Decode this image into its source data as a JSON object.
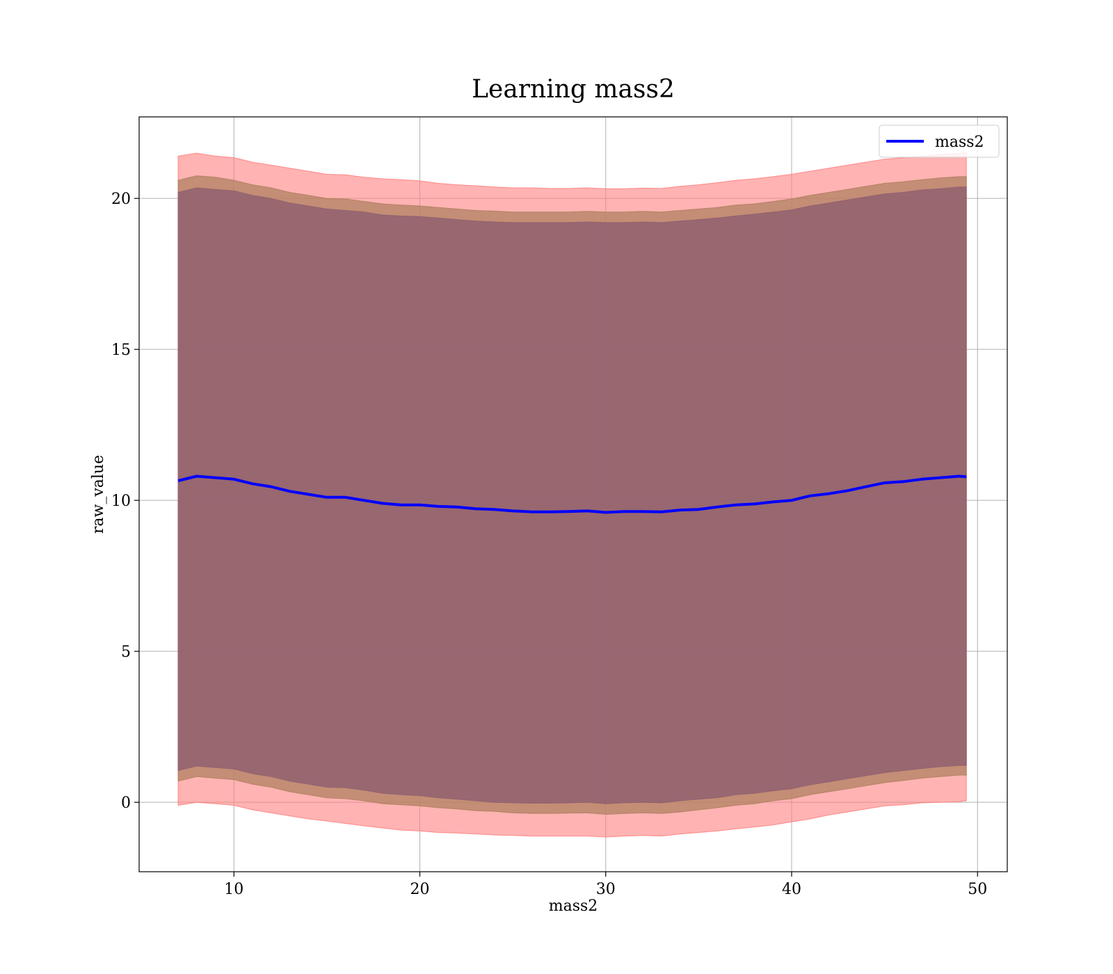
{
  "chart_data": {
    "type": "area",
    "title": "Learning mass2",
    "xlabel": "mass2",
    "ylabel": "raw_value",
    "xlim": [
      4.9,
      51.6
    ],
    "ylim": [
      -2.3,
      22.7
    ],
    "xticks": [
      10,
      20,
      30,
      40,
      50
    ],
    "yticks": [
      0,
      5,
      10,
      15,
      20
    ],
    "xtick_labels": [
      "10",
      "20",
      "30",
      "40",
      "50"
    ],
    "ytick_labels": [
      "0",
      "5",
      "10",
      "15",
      "20"
    ],
    "grid": true,
    "legend": {
      "position": "top-right",
      "entries": [
        "mass2"
      ]
    },
    "colors": {
      "line": "#0000ff",
      "outer_band": "#ff8080",
      "middle_band": "#b08060",
      "inner_band": "#906070",
      "grid": "#b0b0b0"
    },
    "x": [
      7.0,
      8.0,
      9.0,
      10.0,
      11.0,
      12.0,
      13.0,
      14.0,
      15.0,
      16.0,
      17.0,
      18.0,
      19.0,
      20.0,
      21.0,
      22.0,
      23.0,
      24.0,
      25.0,
      26.0,
      27.0,
      28.0,
      29.0,
      30.0,
      31.0,
      32.0,
      33.0,
      34.0,
      35.0,
      36.0,
      37.0,
      38.0,
      39.0,
      40.0,
      41.0,
      42.0,
      43.0,
      44.0,
      45.0,
      46.0,
      47.0,
      48.0,
      49.0,
      49.4
    ],
    "series": [
      {
        "name": "mass2",
        "values": [
          10.65,
          10.8,
          10.75,
          10.7,
          10.55,
          10.45,
          10.3,
          10.2,
          10.1,
          10.1,
          10.0,
          9.9,
          9.85,
          9.85,
          9.8,
          9.78,
          9.72,
          9.7,
          9.65,
          9.62,
          9.62,
          9.63,
          9.65,
          9.6,
          9.63,
          9.63,
          9.62,
          9.68,
          9.7,
          9.78,
          9.85,
          9.88,
          9.95,
          10.0,
          10.15,
          10.22,
          10.32,
          10.45,
          10.58,
          10.62,
          10.7,
          10.75,
          10.8,
          10.78
        ]
      }
    ],
    "bands": [
      {
        "upper": [
          21.4,
          21.5,
          21.4,
          21.35,
          21.2,
          21.1,
          21.0,
          20.9,
          20.8,
          20.78,
          20.7,
          20.65,
          20.62,
          20.58,
          20.5,
          20.45,
          20.42,
          20.38,
          20.35,
          20.35,
          20.33,
          20.33,
          20.35,
          20.32,
          20.32,
          20.34,
          20.33,
          20.4,
          20.45,
          20.52,
          20.6,
          20.65,
          20.72,
          20.8,
          20.9,
          21.0,
          21.1,
          21.2,
          21.3,
          21.35,
          21.4,
          21.45,
          21.5,
          21.5
        ],
        "lower": [
          -0.1,
          0.0,
          -0.05,
          -0.1,
          -0.25,
          -0.35,
          -0.45,
          -0.55,
          -0.62,
          -0.7,
          -0.78,
          -0.85,
          -0.92,
          -0.95,
          -1.0,
          -1.02,
          -1.05,
          -1.08,
          -1.1,
          -1.12,
          -1.12,
          -1.12,
          -1.12,
          -1.15,
          -1.12,
          -1.1,
          -1.12,
          -1.05,
          -1.0,
          -0.95,
          -0.88,
          -0.82,
          -0.75,
          -0.65,
          -0.55,
          -0.42,
          -0.32,
          -0.22,
          -0.12,
          -0.08,
          -0.02,
          0.0,
          0.02,
          0.05
        ]
      },
      {
        "upper": [
          20.6,
          20.75,
          20.7,
          20.6,
          20.45,
          20.35,
          20.2,
          20.1,
          20.0,
          19.98,
          19.9,
          19.82,
          19.78,
          19.75,
          19.7,
          19.65,
          19.6,
          19.58,
          19.55,
          19.55,
          19.55,
          19.55,
          19.57,
          19.55,
          19.55,
          19.57,
          19.55,
          19.6,
          19.65,
          19.7,
          19.78,
          19.82,
          19.9,
          19.98,
          20.1,
          20.2,
          20.3,
          20.4,
          20.5,
          20.55,
          20.62,
          20.68,
          20.72,
          20.72
        ],
        "lower": [
          0.7,
          0.85,
          0.8,
          0.75,
          0.6,
          0.5,
          0.35,
          0.25,
          0.15,
          0.12,
          0.05,
          -0.05,
          -0.08,
          -0.12,
          -0.18,
          -0.22,
          -0.28,
          -0.3,
          -0.35,
          -0.37,
          -0.37,
          -0.36,
          -0.35,
          -0.4,
          -0.37,
          -0.35,
          -0.37,
          -0.32,
          -0.25,
          -0.18,
          -0.1,
          -0.05,
          0.05,
          0.12,
          0.25,
          0.35,
          0.45,
          0.55,
          0.65,
          0.72,
          0.8,
          0.85,
          0.9,
          0.9
        ]
      },
      {
        "upper": [
          20.2,
          20.35,
          20.3,
          20.25,
          20.1,
          20.0,
          19.85,
          19.75,
          19.65,
          19.6,
          19.55,
          19.45,
          19.42,
          19.4,
          19.35,
          19.3,
          19.25,
          19.22,
          19.2,
          19.2,
          19.2,
          19.2,
          19.22,
          19.2,
          19.2,
          19.22,
          19.2,
          19.25,
          19.3,
          19.35,
          19.42,
          19.48,
          19.55,
          19.62,
          19.75,
          19.85,
          19.95,
          20.05,
          20.15,
          20.2,
          20.28,
          20.32,
          20.38,
          20.38
        ],
        "lower": [
          1.05,
          1.2,
          1.15,
          1.1,
          0.95,
          0.85,
          0.7,
          0.6,
          0.5,
          0.48,
          0.4,
          0.3,
          0.25,
          0.22,
          0.15,
          0.1,
          0.05,
          0.0,
          -0.02,
          -0.03,
          -0.03,
          -0.02,
          0.0,
          -0.05,
          -0.02,
          0.0,
          -0.02,
          0.05,
          0.1,
          0.15,
          0.25,
          0.3,
          0.38,
          0.45,
          0.58,
          0.68,
          0.78,
          0.88,
          0.98,
          1.05,
          1.12,
          1.18,
          1.22,
          1.22
        ]
      }
    ]
  }
}
